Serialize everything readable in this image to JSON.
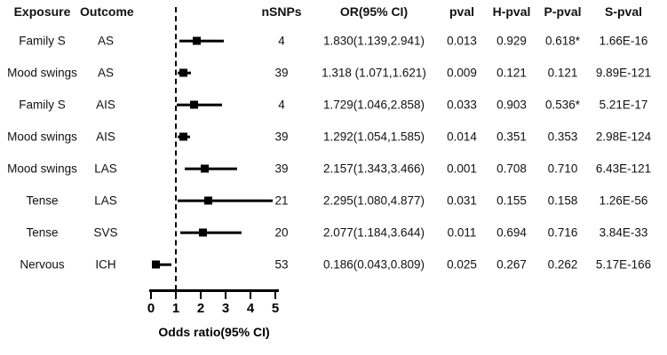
{
  "header": {
    "exposure": "Exposure",
    "outcome": "Outcome",
    "nsnps": "nSNPs",
    "or_ci": "OR(95% CI)",
    "pval": "pval",
    "h_pval": "H-pval",
    "p_pval": "P-pval",
    "s_pval": "S-pval"
  },
  "chart_data": {
    "type": "forest",
    "title": "",
    "xlabel": "Odds ratio(95% CI)",
    "xlim": [
      0,
      5
    ],
    "x_ticks": [
      0,
      1,
      2,
      3,
      4,
      5
    ],
    "ref_line": 1,
    "grid": false,
    "rows": [
      {
        "exposure": "Family S",
        "outcome": "AS",
        "nsnps": "4",
        "or": 1.83,
        "ci_low": 1.139,
        "ci_high": 2.941,
        "or_ci": "1.830(1.139,2.941)",
        "pval": "0.013",
        "h_pval": "0.929",
        "p_pval": "0.618*",
        "s_pval": "1.66E-16"
      },
      {
        "exposure": "Mood swings",
        "outcome": "AS",
        "nsnps": "39",
        "or": 1.318,
        "ci_low": 1.071,
        "ci_high": 1.621,
        "or_ci": "1.318 (1.071,1.621)",
        "pval": "0.009",
        "h_pval": "0.121",
        "p_pval": "0.121",
        "s_pval": "9.89E-121"
      },
      {
        "exposure": "Family S",
        "outcome": "AIS",
        "nsnps": "4",
        "or": 1.729,
        "ci_low": 1.046,
        "ci_high": 2.858,
        "or_ci": "1.729(1.046,2.858)",
        "pval": "0.033",
        "h_pval": "0.903",
        "p_pval": "0.536*",
        "s_pval": "5.21E-17"
      },
      {
        "exposure": "Mood swings",
        "outcome": "AIS",
        "nsnps": "39",
        "or": 1.292,
        "ci_low": 1.054,
        "ci_high": 1.585,
        "or_ci": "1.292(1.054,1.585)",
        "pval": "0.014",
        "h_pval": "0.351",
        "p_pval": "0.353",
        "s_pval": "2.98E-124"
      },
      {
        "exposure": "Mood swings",
        "outcome": "LAS",
        "nsnps": "39",
        "or": 2.157,
        "ci_low": 1.343,
        "ci_high": 3.466,
        "or_ci": "2.157(1.343,3.466)",
        "pval": "0.001",
        "h_pval": "0.708",
        "p_pval": "0.710",
        "s_pval": "6.43E-121"
      },
      {
        "exposure": "Tense",
        "outcome": "LAS",
        "nsnps": "21",
        "or": 2.295,
        "ci_low": 1.08,
        "ci_high": 4.877,
        "or_ci": "2.295(1.080,4.877)",
        "pval": "0.031",
        "h_pval": "0.155",
        "p_pval": "0.158",
        "s_pval": "1.26E-56"
      },
      {
        "exposure": "Tense",
        "outcome": "SVS",
        "nsnps": "20",
        "or": 2.077,
        "ci_low": 1.184,
        "ci_high": 3.644,
        "or_ci": "2.077(1.184,3.644)",
        "pval": "0.011",
        "h_pval": "0.694",
        "p_pval": "0.716",
        "s_pval": "3.84E-33"
      },
      {
        "exposure": "Nervous",
        "outcome": "ICH",
        "nsnps": "53",
        "or": 0.186,
        "ci_low": 0.043,
        "ci_high": 0.809,
        "or_ci": "0.186(0.043,0.809)",
        "pval": "0.025",
        "h_pval": "0.267",
        "p_pval": "0.262",
        "s_pval": "5.17E-166"
      }
    ]
  },
  "colors": {
    "marker": "#000000",
    "ref_line": "#000000",
    "text": "#111111"
  }
}
